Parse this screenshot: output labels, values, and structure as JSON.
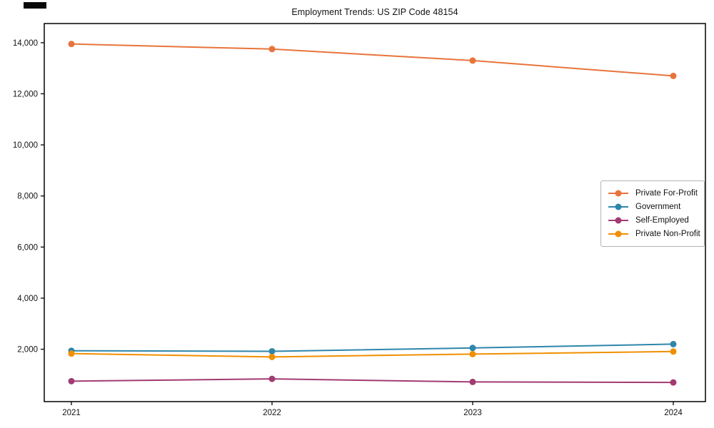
{
  "window": {
    "artifact_note": "small dark bar at top-left of screenshot"
  },
  "chart_data": {
    "type": "line",
    "title": "Employment Trends: US ZIP Code 48154",
    "xlabel": "",
    "ylabel": "",
    "x": [
      2021,
      2022,
      2023,
      2024
    ],
    "x_tick_labels": [
      "2021",
      "2022",
      "2023",
      "2024"
    ],
    "y_ticks": [
      2000,
      4000,
      6000,
      8000,
      10000,
      12000,
      14000
    ],
    "y_tick_labels": [
      "2,000",
      "4,000",
      "6,000",
      "8,000",
      "10,000",
      "12,000",
      "14,000"
    ],
    "ylim": [
      -50,
      14750
    ],
    "grid": false,
    "legend_position": "center-right",
    "marker": "circle",
    "axis_color": "#000000",
    "series": [
      {
        "name": "Private For-Profit",
        "color": "#E8743B",
        "values": [
          13950,
          13750,
          13300,
          12700
        ]
      },
      {
        "name": "Government",
        "color": "#2E86AB",
        "values": [
          1940,
          1920,
          2050,
          2200
        ]
      },
      {
        "name": "Self-Employed",
        "color": "#A23B72",
        "values": [
          750,
          840,
          720,
          700
        ]
      },
      {
        "name": "Private Non-Profit",
        "color": "#F18F01",
        "values": [
          1830,
          1700,
          1810,
          1910
        ]
      }
    ]
  }
}
